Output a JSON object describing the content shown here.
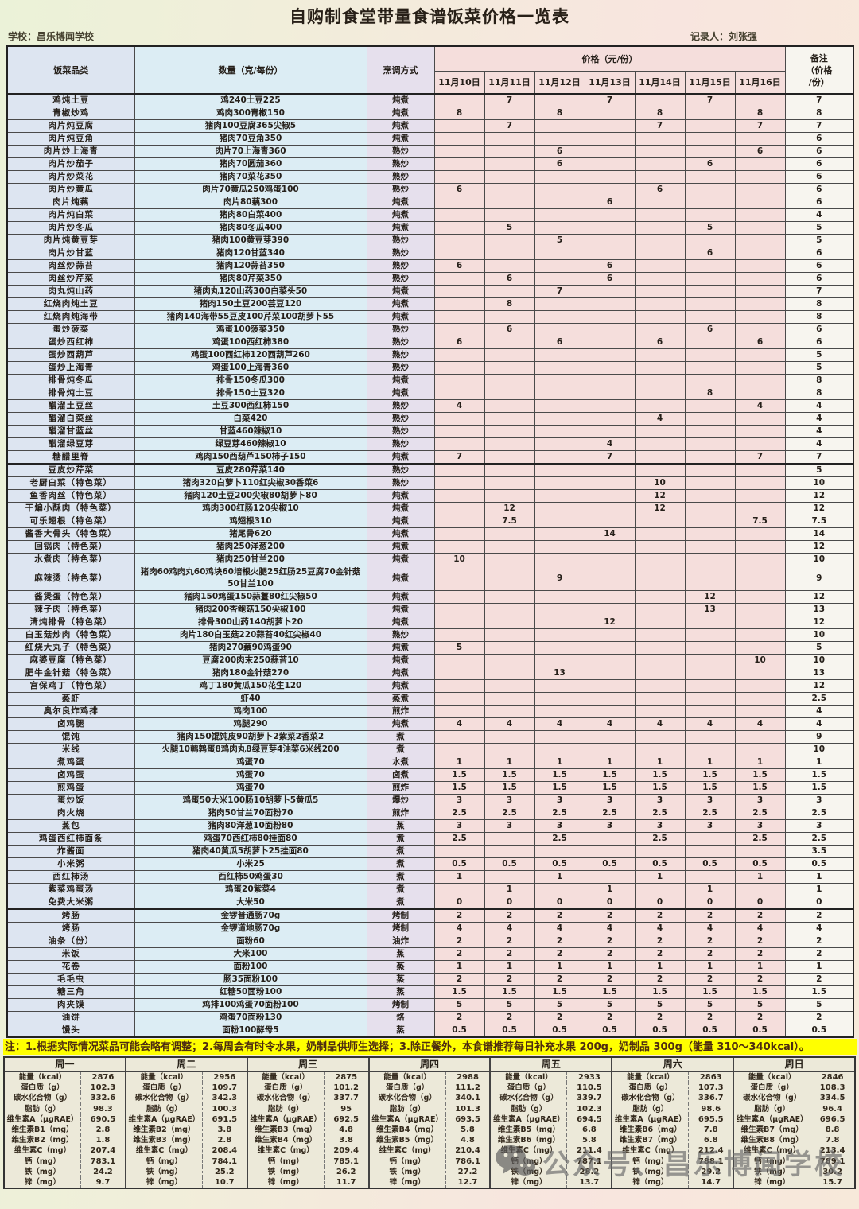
{
  "page": {
    "title": "自购制食堂带量食谱饭菜价格一览表",
    "school": "学校：昌乐博闻学校",
    "recorder": "记录人：刘张强"
  },
  "colors": {
    "cat_col": "#dde5f1",
    "qty_col": "#dcedf4",
    "method_col": "#e6e0ed",
    "price_col": "#f5dedc",
    "note_col": "#f7f5ef",
    "note_bar": "#ffff00",
    "note_text": "#4d2c10",
    "nutrition_bg": "#ece9d9",
    "watermark": "#6d6d6d"
  },
  "table": {
    "headers": {
      "category": "饭菜品类",
      "quantity": "数量（克/每份）",
      "method": "烹调方式",
      "price_group": "价格（元/份）",
      "dates": [
        "11月10日",
        "11月11日",
        "11月12日",
        "11月13日",
        "11月14日",
        "11月15日",
        "11月16日"
      ],
      "note": "备注\n（价格\n/份）"
    },
    "section_breaks_after": [
      29,
      63
    ],
    "rows": [
      [
        "鸡炖土豆",
        "鸡240土豆225",
        "炖煮",
        "",
        "7",
        "",
        "7",
        "",
        "7",
        "",
        "7"
      ],
      [
        "青椒炒鸡",
        "鸡肉300青椒150",
        "炖煮",
        "8",
        "",
        "8",
        "",
        "8",
        "",
        "8",
        "8"
      ],
      [
        "肉片炖豆腐",
        "猪肉100豆腐365尖椒5",
        "炖煮",
        "",
        "7",
        "",
        "",
        "7",
        "",
        "7",
        "7"
      ],
      [
        "肉片炖豆角",
        "猪肉70豆角350",
        "炖煮",
        "",
        "",
        "",
        "",
        "",
        "",
        "",
        "6"
      ],
      [
        "肉片炒上海青",
        "肉片70上海青360",
        "熟炒",
        "",
        "",
        "6",
        "",
        "",
        "",
        "6",
        "6"
      ],
      [
        "肉片炒茄子",
        "猪肉70圆茄360",
        "熟炒",
        "",
        "",
        "6",
        "",
        "",
        "6",
        "",
        "6"
      ],
      [
        "肉片炒菜花",
        "猪肉70菜花350",
        "熟炒",
        "",
        "",
        "",
        "",
        "",
        "",
        "",
        "6"
      ],
      [
        "肉片炒黄瓜",
        "肉片70黄瓜250鸡蛋100",
        "熟炒",
        "6",
        "",
        "",
        "",
        "6",
        "",
        "",
        "6"
      ],
      [
        "肉片炖藕",
        "肉片80藕300",
        "炖煮",
        "",
        "",
        "",
        "6",
        "",
        "",
        "",
        "6"
      ],
      [
        "肉片炖白菜",
        "猪肉80白菜400",
        "炖煮",
        "",
        "",
        "",
        "",
        "",
        "",
        "",
        "4"
      ],
      [
        "肉片炒冬瓜",
        "猪肉80冬瓜400",
        "炖煮",
        "",
        "5",
        "",
        "",
        "",
        "5",
        "",
        "5"
      ],
      [
        "肉片炖黄豆芽",
        "猪肉100黄豆芽390",
        "熟炒",
        "",
        "",
        "5",
        "",
        "",
        "",
        "",
        "5"
      ],
      [
        "肉片炒甘蓝",
        "猪肉120甘蓝340",
        "熟炒",
        "",
        "",
        "",
        "",
        "",
        "6",
        "",
        "6"
      ],
      [
        "肉丝炒蒜苔",
        "猪肉120蒜苔350",
        "熟炒",
        "6",
        "",
        "",
        "6",
        "",
        "",
        "",
        "6"
      ],
      [
        "肉丝炒芹菜",
        "猪肉80芹菜350",
        "熟炒",
        "",
        "6",
        "",
        "6",
        "",
        "",
        "",
        "6"
      ],
      [
        "肉丸炖山药",
        "猪肉丸120山药300白菜头50",
        "炖煮",
        "",
        "",
        "7",
        "",
        "",
        "",
        "",
        "7"
      ],
      [
        "红烧肉炖土豆",
        "猪肉150土豆200芸豆120",
        "炖煮",
        "",
        "8",
        "",
        "",
        "",
        "",
        "",
        "8"
      ],
      [
        "红烧肉炖海带",
        "猪肉140海带55豆皮100芹菜100胡萝卜55",
        "炖煮",
        "",
        "",
        "",
        "",
        "",
        "",
        "",
        "8"
      ],
      [
        "蛋炒菠菜",
        "鸡蛋100菠菜350",
        "熟炒",
        "",
        "6",
        "",
        "",
        "",
        "6",
        "",
        "6"
      ],
      [
        "蛋炒西红柿",
        "鸡蛋100西红柿380",
        "熟炒",
        "6",
        "",
        "6",
        "",
        "6",
        "",
        "6",
        "6"
      ],
      [
        "蛋炒西葫芦",
        "鸡蛋100西红柿120西葫芦260",
        "熟炒",
        "",
        "",
        "",
        "",
        "",
        "",
        "",
        "5"
      ],
      [
        "蛋炒上海青",
        "鸡蛋100上海青360",
        "熟炒",
        "",
        "",
        "",
        "",
        "",
        "",
        "",
        "5"
      ],
      [
        "排骨炖冬瓜",
        "排骨150冬瓜300",
        "炖煮",
        "",
        "",
        "",
        "",
        "",
        "",
        "",
        "8"
      ],
      [
        "排骨炖土豆",
        "排骨150土豆320",
        "炖煮",
        "",
        "",
        "",
        "",
        "",
        "8",
        "",
        "8"
      ],
      [
        "醋溜土豆丝",
        "土豆300西红柿150",
        "熟炒",
        "4",
        "",
        "",
        "",
        "",
        "",
        "4",
        "4"
      ],
      [
        "醋溜白菜丝",
        "白菜420",
        "熟炒",
        "",
        "",
        "",
        "",
        "4",
        "",
        "",
        "4"
      ],
      [
        "醋溜甘蓝丝",
        "甘蓝460辣椒10",
        "熟炒",
        "",
        "",
        "",
        "",
        "",
        "",
        "",
        "4"
      ],
      [
        "醋溜绿豆芽",
        "绿豆芽460辣椒10",
        "熟炒",
        "",
        "",
        "",
        "4",
        "",
        "",
        "",
        "4"
      ],
      [
        "糖醋里脊",
        "鸡肉150西葫芦150柿子150",
        "炖煮",
        "7",
        "",
        "",
        "7",
        "",
        "",
        "7",
        "7"
      ],
      [
        "豆皮炒芹菜",
        "豆皮280芹菜140",
        "熟炒",
        "",
        "",
        "",
        "",
        "",
        "",
        "",
        "5"
      ],
      [
        "老厨白菜（特色菜）",
        "猪肉320白萝卜110红尖椒30香菜6",
        "熟炒",
        "",
        "",
        "",
        "",
        "10",
        "",
        "",
        "10"
      ],
      [
        "鱼香肉丝（特色菜）",
        "猪肉120土豆200尖椒80胡萝卜80",
        "炖煮",
        "",
        "",
        "",
        "",
        "12",
        "",
        "",
        "12"
      ],
      [
        "干煸小酥肉（特色菜）",
        "鸡肉300红肠120尖椒10",
        "炖煮",
        "",
        "12",
        "",
        "",
        "12",
        "",
        "",
        "12"
      ],
      [
        "可乐翅根（特色菜）",
        "鸡翅根310",
        "炖煮",
        "",
        "7.5",
        "",
        "",
        "",
        "",
        "7.5",
        "7.5"
      ],
      [
        "酱香大骨头（特色菜）",
        "猪尾骨620",
        "炖煮",
        "",
        "",
        "",
        "14",
        "",
        "",
        "",
        "14"
      ],
      [
        "回锅肉（特色菜）",
        "猪肉250洋葱200",
        "炖煮",
        "",
        "",
        "",
        "",
        "",
        "",
        "",
        "12"
      ],
      [
        "水煮肉（特色菜）",
        "猪肉250甘兰200",
        "炖煮",
        "10",
        "",
        "",
        "",
        "",
        "",
        "",
        "10"
      ],
      [
        "麻辣烫（特色菜）",
        "猪肉60鸡肉丸60鸡块60培根火腿25红肠25豆腐70金针菇50甘兰100",
        "炖煮",
        "",
        "",
        "9",
        "",
        "",
        "",
        "",
        "9"
      ],
      [
        "酱煲蛋（特色菜）",
        "猪肉150鸡蛋150蒜薹80红尖椒50",
        "炖煮",
        "",
        "",
        "",
        "",
        "",
        "12",
        "",
        "12"
      ],
      [
        "辣子肉（特色菜）",
        "猪肉200杏鲍菇150尖椒100",
        "炖煮",
        "",
        "",
        "",
        "",
        "",
        "13",
        "",
        "13"
      ],
      [
        "清炖排骨（特色菜）",
        "排骨300山药140胡萝卜20",
        "炖煮",
        "",
        "",
        "",
        "12",
        "",
        "",
        "",
        "12"
      ],
      [
        "白玉菇炒肉（特色菜）",
        "肉片180白玉菇220蒜苔40红尖椒40",
        "熟炒",
        "",
        "",
        "",
        "",
        "",
        "",
        "",
        "10"
      ],
      [
        "红烧大丸子（特色菜）",
        "猪肉270藕90鸡蛋90",
        "炖煮",
        "5",
        "",
        "",
        "",
        "",
        "",
        "",
        "5"
      ],
      [
        "麻婆豆腐（特色菜）",
        "豆腐200肉末250蒜苔10",
        "炖煮",
        "",
        "",
        "",
        "",
        "",
        "",
        "10",
        "10"
      ],
      [
        "肥牛金针菇（特色菜）",
        "猪肉180金针菇270",
        "炖煮",
        "",
        "",
        "13",
        "",
        "",
        "",
        "",
        "13"
      ],
      [
        "宫保鸡丁（特色菜）",
        "鸡丁180黄瓜150花生120",
        "炖煮",
        "",
        "",
        "",
        "",
        "",
        "",
        "",
        "12"
      ],
      [
        "蒸虾",
        "虾40",
        "蒸煮",
        "",
        "",
        "",
        "",
        "",
        "",
        "",
        "2.5"
      ],
      [
        "奥尔良炸鸡排",
        "鸡肉100",
        "煎炸",
        "",
        "",
        "",
        "",
        "",
        "",
        "",
        "4"
      ],
      [
        "卤鸡腿",
        "鸡腿290",
        "炖煮",
        "4",
        "4",
        "4",
        "4",
        "4",
        "4",
        "4",
        "4"
      ],
      [
        "馄饨",
        "猪肉150馄饨皮90胡萝卜2紫菜2香菜2",
        "煮",
        "",
        "",
        "",
        "",
        "",
        "",
        "",
        "9"
      ],
      [
        "米线",
        "火腿10鹌鹑蛋8鸡肉丸8绿豆芽4油菜6米线200",
        "煮",
        "",
        "",
        "",
        "",
        "",
        "",
        "",
        "10"
      ],
      [
        "煮鸡蛋",
        "鸡蛋70",
        "水煮",
        "1",
        "1",
        "1",
        "1",
        "1",
        "1",
        "1",
        "1"
      ],
      [
        "卤鸡蛋",
        "鸡蛋70",
        "卤煮",
        "1.5",
        "1.5",
        "1.5",
        "1.5",
        "1.5",
        "1.5",
        "1.5",
        "1.5"
      ],
      [
        "煎鸡蛋",
        "鸡蛋70",
        "煎炸",
        "1.5",
        "1.5",
        "1.5",
        "1.5",
        "1.5",
        "1.5",
        "1.5",
        "1.5"
      ],
      [
        "蛋炒饭",
        "鸡蛋50大米100肠10胡萝卜5黄瓜5",
        "爆炒",
        "3",
        "3",
        "3",
        "3",
        "3",
        "3",
        "3",
        "3"
      ],
      [
        "肉火烧",
        "猪肉50甘兰70面粉70",
        "煎炸",
        "2.5",
        "2.5",
        "2.5",
        "2.5",
        "2.5",
        "2.5",
        "2.5",
        "2.5"
      ],
      [
        "蒸包",
        "猪肉80洋葱10面粉80",
        "蒸",
        "3",
        "3",
        "3",
        "3",
        "3",
        "3",
        "3",
        "3"
      ],
      [
        "鸡蛋西红柿面条",
        "鸡蛋70西红柿80挂面80",
        "煮",
        "2.5",
        "",
        "2.5",
        "",
        "2.5",
        "",
        "2.5",
        "2.5"
      ],
      [
        "炸酱面",
        "猪肉40黄瓜5胡萝卜25挂面80",
        "煮",
        "",
        "",
        "",
        "",
        "",
        "",
        "",
        "3.5"
      ],
      [
        "小米粥",
        "小米25",
        "煮",
        "0.5",
        "0.5",
        "0.5",
        "0.5",
        "0.5",
        "0.5",
        "0.5",
        "0.5"
      ],
      [
        "西红柿汤",
        "西红柿50鸡蛋30",
        "煮",
        "1",
        "",
        "1",
        "",
        "1",
        "",
        "1",
        "1"
      ],
      [
        "紫菜鸡蛋汤",
        "鸡蛋20紫菜4",
        "煮",
        "",
        "1",
        "",
        "1",
        "",
        "1",
        "",
        "1"
      ],
      [
        "免费大米粥",
        "大米50",
        "煮",
        "0",
        "0",
        "0",
        "0",
        "0",
        "0",
        "0",
        "0"
      ],
      [
        "烤肠",
        "金锣普通肠70g",
        "烤制",
        "2",
        "2",
        "2",
        "2",
        "2",
        "2",
        "2",
        "2"
      ],
      [
        "烤肠",
        "金锣道地肠70g",
        "烤制",
        "4",
        "4",
        "4",
        "4",
        "4",
        "4",
        "4",
        "4"
      ],
      [
        "油条（份）",
        "面粉60",
        "油炸",
        "2",
        "2",
        "2",
        "2",
        "2",
        "2",
        "2",
        "2"
      ],
      [
        "米饭",
        "大米100",
        "蒸",
        "2",
        "2",
        "2",
        "2",
        "2",
        "2",
        "2",
        "2"
      ],
      [
        "花卷",
        "面粉100",
        "蒸",
        "1",
        "1",
        "1",
        "1",
        "1",
        "1",
        "1",
        "1"
      ],
      [
        "毛毛虫",
        "肠35面粉100",
        "蒸",
        "2",
        "2",
        "2",
        "2",
        "2",
        "2",
        "2",
        "2"
      ],
      [
        "糖三角",
        "红糖50面粉100",
        "蒸",
        "1.5",
        "1.5",
        "1.5",
        "1.5",
        "1.5",
        "1.5",
        "1.5",
        "1.5"
      ],
      [
        "肉夹馍",
        "鸡排100鸡蛋70面粉100",
        "烤制",
        "5",
        "5",
        "5",
        "5",
        "5",
        "5",
        "5",
        "5"
      ],
      [
        "油饼",
        "鸡蛋70面粉130",
        "烙",
        "2",
        "2",
        "2",
        "2",
        "2",
        "2",
        "2",
        "2"
      ],
      [
        "馒头",
        "面粉100酵母5",
        "蒸",
        "0.5",
        "0.5",
        "0.5",
        "0.5",
        "0.5",
        "0.5",
        "0.5",
        "0.5"
      ]
    ]
  },
  "note_text": "注：1.根据实际情况菜品可能会略有调整；2.每周会有时令水果，奶制品供师生选择；3.除正餐外，本食谱推荐每日补充水果 200g，奶制品 300g（能量 310～340kcal）。",
  "nutrition": {
    "days": [
      {
        "day": "周一",
        "rows": [
          [
            "能量（kcal）",
            "2876"
          ],
          [
            "蛋白质（g）",
            "102.3"
          ],
          [
            "碳水化合物（g）",
            "332.6"
          ],
          [
            "脂肪（g）",
            "98.3"
          ],
          [
            "维生素A（μgRAE）",
            "690.5"
          ],
          [
            "维生素B1（mg）",
            "2.8"
          ],
          [
            "维生素B2（mg）",
            "1.8"
          ],
          [
            "维生素C（mg）",
            "207.4"
          ],
          [
            "钙（mg）",
            "783.1"
          ],
          [
            "铁（mg）",
            "24.2"
          ],
          [
            "锌（mg）",
            "9.7"
          ]
        ]
      },
      {
        "day": "周二",
        "rows": [
          [
            "能量（kcal）",
            "2956"
          ],
          [
            "蛋白质（g）",
            "109.7"
          ],
          [
            "碳水化合物（g）",
            "342.3"
          ],
          [
            "脂肪（g）",
            "100.3"
          ],
          [
            "维生素A（μgRAE）",
            "691.5"
          ],
          [
            "维生素B2（mg）",
            "3.8"
          ],
          [
            "维生素B3（mg）",
            "2.8"
          ],
          [
            "维生素C（mg）",
            "208.4"
          ],
          [
            "钙（mg）",
            "784.1"
          ],
          [
            "铁（mg）",
            "25.2"
          ],
          [
            "锌（mg）",
            "10.7"
          ]
        ]
      },
      {
        "day": "周三",
        "rows": [
          [
            "能量（kcal）",
            "2875"
          ],
          [
            "蛋白质（g）",
            "101.2"
          ],
          [
            "碳水化合物（g）",
            "337.7"
          ],
          [
            "脂肪（g）",
            "95"
          ],
          [
            "维生素A（μgRAE）",
            "692.5"
          ],
          [
            "维生素B3（mg）",
            "4.8"
          ],
          [
            "维生素B4（mg）",
            "3.8"
          ],
          [
            "维生素C（mg）",
            "209.4"
          ],
          [
            "钙（mg）",
            "785.1"
          ],
          [
            "铁（mg）",
            "26.2"
          ],
          [
            "锌（mg）",
            "11.7"
          ]
        ]
      },
      {
        "day": "周四",
        "rows": [
          [
            "能量（kcal）",
            "2988"
          ],
          [
            "蛋白质（g）",
            "111.2"
          ],
          [
            "碳水化合物（g）",
            "340.1"
          ],
          [
            "脂肪（g）",
            "101.3"
          ],
          [
            "维生素A（μgRAE）",
            "693.5"
          ],
          [
            "维生素B4（mg）",
            "5.8"
          ],
          [
            "维生素B5（mg）",
            "4.8"
          ],
          [
            "维生素C（mg）",
            "210.4"
          ],
          [
            "钙（mg）",
            "786.1"
          ],
          [
            "铁（mg）",
            "27.2"
          ],
          [
            "锌（mg）",
            "12.7"
          ]
        ]
      },
      {
        "day": "周五",
        "rows": [
          [
            "能量（kcal）",
            "2933"
          ],
          [
            "蛋白质（g）",
            "110.5"
          ],
          [
            "碳水化合物（g）",
            "339.7"
          ],
          [
            "脂肪（g）",
            "102.3"
          ],
          [
            "维生素A（μgRAE）",
            "694.5"
          ],
          [
            "维生素B5（mg）",
            "6.8"
          ],
          [
            "维生素B6（mg）",
            "5.8"
          ],
          [
            "维生素C（mg）",
            "211.4"
          ],
          [
            "钙（mg）",
            "787.1"
          ],
          [
            "铁（mg）",
            "28.2"
          ],
          [
            "锌（mg）",
            "13.7"
          ]
        ]
      },
      {
        "day": "周六",
        "rows": [
          [
            "能量（kcal）",
            "2863"
          ],
          [
            "蛋白质（g）",
            "107.3"
          ],
          [
            "碳水化合物（g）",
            "336.7"
          ],
          [
            "脂肪（g）",
            "98.6"
          ],
          [
            "维生素A（μgRAE）",
            "695.5"
          ],
          [
            "维生素B6（mg）",
            "7.8"
          ],
          [
            "维生素B7（mg）",
            "6.8"
          ],
          [
            "维生素C（mg）",
            "212.4"
          ],
          [
            "钙（mg）",
            "788.1"
          ],
          [
            "铁（mg）",
            "29.2"
          ],
          [
            "锌（mg）",
            "14.7"
          ]
        ]
      },
      {
        "day": "周日",
        "rows": [
          [
            "能量（kcal）",
            "2846"
          ],
          [
            "蛋白质（g）",
            "108.3"
          ],
          [
            "碳水化合物（g）",
            "334.5"
          ],
          [
            "脂肪（g）",
            "96.4"
          ],
          [
            "维生素A（μgRAE）",
            "696.5"
          ],
          [
            "维生素B7（mg）",
            "8.8"
          ],
          [
            "维生素B8（mg）",
            "7.8"
          ],
          [
            "维生素C（mg）",
            "213.4"
          ],
          [
            "钙（mg）",
            "789.1"
          ],
          [
            "铁（mg）",
            "30.2"
          ],
          [
            "锌（mg）",
            "15.7"
          ]
        ]
      }
    ]
  },
  "watermark": {
    "text": "公众号、昌乐博闻学校"
  }
}
